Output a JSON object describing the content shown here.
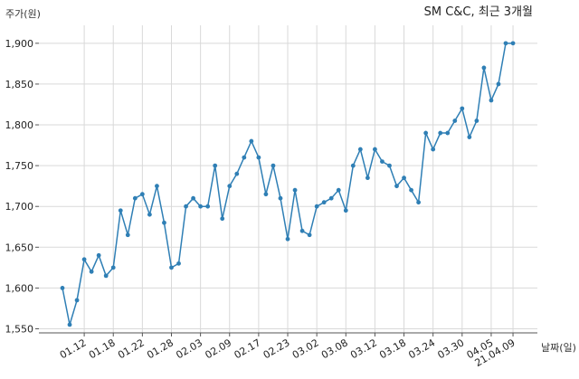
{
  "chart_data": {
    "type": "line",
    "title": "SM C&C, 최근 3개월",
    "ylabel": "주가(원)",
    "xlabel": "날짜(일)",
    "ylim": [
      1545,
      1922
    ],
    "yticks": [
      1550,
      1600,
      1650,
      1700,
      1750,
      1800,
      1850,
      1900
    ],
    "ytick_labels": [
      "1,550",
      "1,600",
      "1,650",
      "1,700",
      "1,750",
      "1,800",
      "1,850",
      "1,900"
    ],
    "xtick_labels": [
      "01.12",
      "01.18",
      "01.22",
      "01.28",
      "02.03",
      "02.09",
      "02.17",
      "02.23",
      "03.02",
      "03.08",
      "03.12",
      "03.18",
      "03.24",
      "03.30",
      "04.05",
      "21.04.09"
    ],
    "xtick_index": [
      3,
      7,
      11,
      15,
      19,
      23,
      27,
      31,
      35,
      39,
      43,
      47,
      51,
      55,
      59,
      62
    ],
    "grid": true,
    "color": "#2f7fb5",
    "series": [
      {
        "name": "",
        "values": [
          1600,
          1555,
          1585,
          1635,
          1620,
          1640,
          1615,
          1625,
          1695,
          1665,
          1710,
          1715,
          1690,
          1725,
          1680,
          1625,
          1630,
          1700,
          1710,
          1700,
          1700,
          1750,
          1685,
          1725,
          1740,
          1760,
          1780,
          1760,
          1715,
          1750,
          1710,
          1660,
          1720,
          1670,
          1665,
          1700,
          1705,
          1710,
          1720,
          1695,
          1750,
          1770,
          1735,
          1770,
          1755,
          1750,
          1725,
          1735,
          1720,
          1705,
          1790,
          1770,
          1790,
          1790,
          1805,
          1820,
          1785,
          1805,
          1870,
          1830,
          1850,
          1900,
          1900
        ]
      }
    ]
  }
}
